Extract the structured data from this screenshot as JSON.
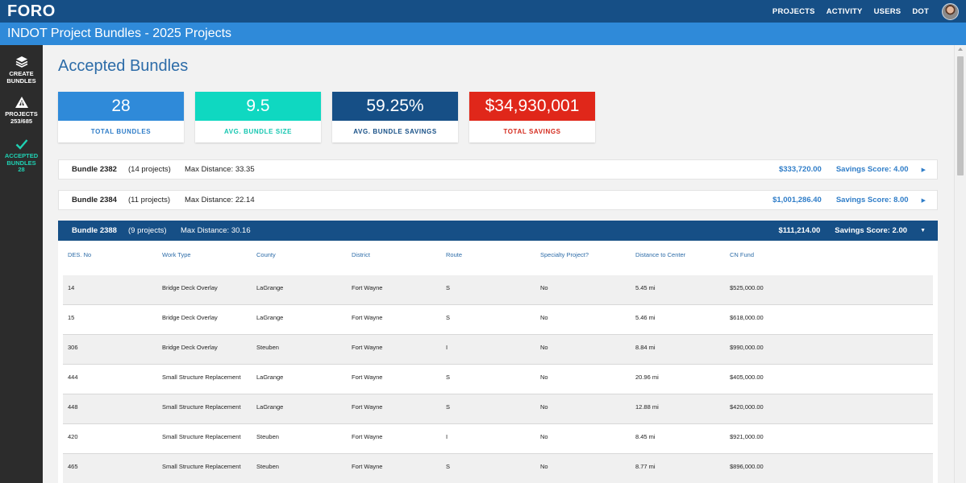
{
  "app": {
    "logo": "FORO",
    "subtitle": "INDOT Project Bundles - 2025 Projects"
  },
  "topnav": {
    "projects": "PROJECTS",
    "activity": "ACTIVITY",
    "users": "USERS",
    "dot": "DOT"
  },
  "sidebar": {
    "create_line1": "CREATE",
    "create_line2": "BUNDLES",
    "projects_line1": "PROJECTS",
    "projects_line2": "253/685",
    "accepted_line1": "ACCEPTED",
    "accepted_line2": "BUNDLES",
    "accepted_line3": "28"
  },
  "page": {
    "title": "Accepted Bundles"
  },
  "stats": [
    {
      "value": "28",
      "label": "TOTAL BUNDLES",
      "color": "#2f8ad9",
      "label_color": "#2f7dc8"
    },
    {
      "value": "9.5",
      "label": "AVG. BUNDLE SIZE",
      "color": "#0fd8c1",
      "label_color": "#14c6b0"
    },
    {
      "value": "59.25%",
      "label": "AVG. BUNDLE SAVINGS",
      "color": "#164f86",
      "label_color": "#164f86"
    },
    {
      "value": "$34,930,001",
      "label": "TOTAL SAVINGS",
      "color": "#e0271a",
      "label_color": "#d42a1d"
    }
  ],
  "bundles": [
    {
      "name": "Bundle 2382",
      "count": "(14 projects)",
      "distance": "Max Distance: 33.35",
      "amount": "$333,720.00",
      "score": "Savings Score: 4.00"
    },
    {
      "name": "Bundle 2384",
      "count": "(11 projects)",
      "distance": "Max Distance: 22.14",
      "amount": "$1,001,286.40",
      "score": "Savings Score: 8.00"
    },
    {
      "name": "Bundle 2388",
      "count": "(9 projects)",
      "distance": "Max Distance: 30.16",
      "amount": "$111,214.00",
      "score": "Savings Score: 2.00"
    }
  ],
  "table": {
    "headers": [
      "DES. No",
      "Work Type",
      "County",
      "District",
      "Route",
      "Specialty Project?",
      "Distance to Center",
      "CN Fund"
    ],
    "rows": [
      [
        "14",
        "Bridge Deck Overlay",
        "LaGrange",
        "Fort Wayne",
        "S",
        "No",
        "5.45 mi",
        "$525,000.00"
      ],
      [
        "15",
        "Bridge Deck Overlay",
        "LaGrange",
        "Fort Wayne",
        "S",
        "No",
        "5.46 mi",
        "$618,000.00"
      ],
      [
        "306",
        "Bridge Deck Overlay",
        "Steuben",
        "Fort Wayne",
        "I",
        "No",
        "8.84 mi",
        "$990,000.00"
      ],
      [
        "444",
        "Small Structure Replacement",
        "LaGrange",
        "Fort Wayne",
        "S",
        "No",
        "20.96 mi",
        "$405,000.00"
      ],
      [
        "448",
        "Small Structure Replacement",
        "LaGrange",
        "Fort Wayne",
        "S",
        "No",
        "12.88 mi",
        "$420,000.00"
      ],
      [
        "420",
        "Small Structure Replacement",
        "Steuben",
        "Fort Wayne",
        "I",
        "No",
        "8.45 mi",
        "$921,000.00"
      ],
      [
        "465",
        "Small Structure Replacement",
        "Steuben",
        "Fort Wayne",
        "S",
        "No",
        "8.77 mi",
        "$896,000.00"
      ]
    ]
  }
}
